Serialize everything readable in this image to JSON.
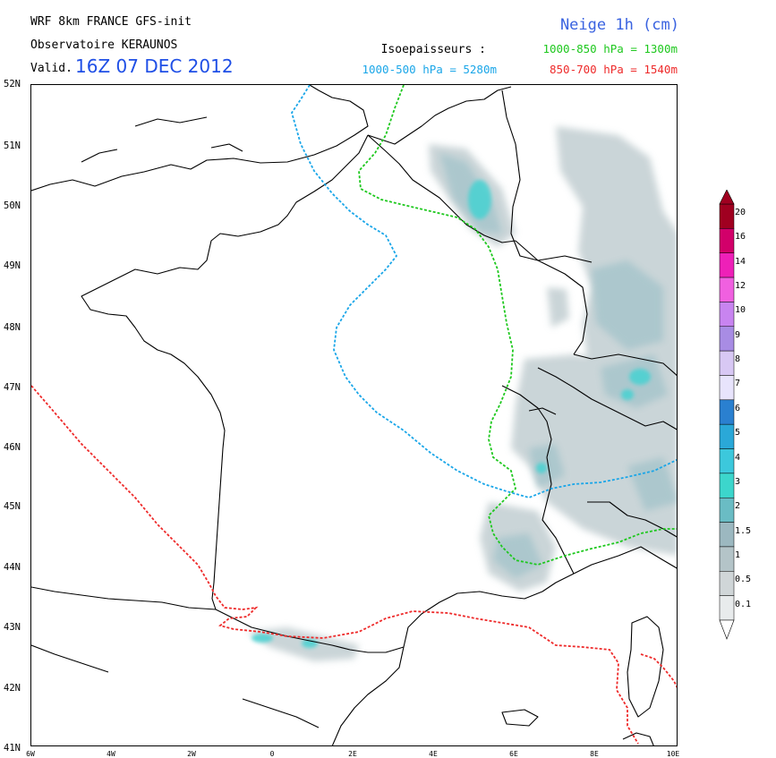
{
  "header": {
    "model": "WRF 8km FRANCE  GFS-init",
    "org": "Observatoire KERAUNOS",
    "valid_prefix": "Valid.",
    "valid_time": "16Z 07 DEC 2012",
    "product": "Neige 1h (cm)",
    "isoep_label": "Isoepaisseurs :",
    "iso_1000_850": "1000-850 hPa = 1300m",
    "iso_1000_500": "1000-500 hPa = 5280m",
    "iso_850_700": "850-700 hPa = 1540m"
  },
  "colors": {
    "iso_1000_850": "#1ec81e",
    "iso_1000_500": "#1aa6e8",
    "iso_850_700": "#ee2a2a",
    "snow_light": "#c8d3d6",
    "snow_mid": "#a9c6cc",
    "snow_high": "#46d2d2"
  },
  "axes": {
    "lat_labels": [
      "52N",
      "51N",
      "50N",
      "49N",
      "48N",
      "47N",
      "46N",
      "45N",
      "44N",
      "43N",
      "42N",
      "41N"
    ],
    "lon_labels": [
      "6W",
      "4W",
      "2W",
      "0",
      "2E",
      "4E",
      "6E",
      "8E",
      "10E"
    ]
  },
  "colorbar": {
    "levels": [
      "20",
      "16",
      "14",
      "12",
      "10",
      "9",
      "8",
      "7",
      "6",
      "5",
      "4",
      "3",
      "2",
      "1.5",
      "1",
      "0.5",
      "0.1"
    ],
    "colors": [
      "#a00020",
      "#d2006a",
      "#ee20b8",
      "#f060e0",
      "#c884f0",
      "#a88ce4",
      "#d8c8f4",
      "#e8e4fc",
      "#2a80d0",
      "#2aa8d8",
      "#3cc8dc",
      "#3cd6cc",
      "#6abcc4",
      "#9cb8c0",
      "#b4c4c8",
      "#d0d6d8",
      "#e8ebec"
    ]
  }
}
